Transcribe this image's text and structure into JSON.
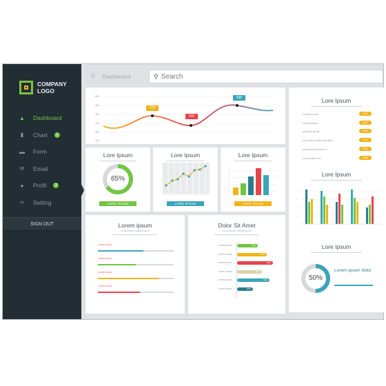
{
  "sidebar": {
    "logo_line1": "COMPANY",
    "logo_line2": "LOGO",
    "items": [
      {
        "label": "Dashboard",
        "icon": "home-icon",
        "glyph": "▲"
      },
      {
        "label": "Chart",
        "icon": "bar-chart-icon",
        "glyph": "▮",
        "badge": "2"
      },
      {
        "label": "Form",
        "icon": "form-icon",
        "glyph": "▬"
      },
      {
        "label": "Email",
        "icon": "email-icon",
        "glyph": "✉"
      },
      {
        "label": "Profil",
        "icon": "user-icon",
        "glyph": "●",
        "badge": "3"
      },
      {
        "label": "Setting",
        "icon": "gear-icon",
        "glyph": "∞"
      }
    ],
    "signout": "SIGN OUT"
  },
  "topbar": {
    "crumb": "Dashboard",
    "search_placeholder": "Search"
  },
  "line_card": {
    "y_ticks": [
      "600",
      "500",
      "400",
      "300",
      "200",
      "100"
    ],
    "tags": [
      "275",
      "200",
      "400"
    ]
  },
  "donut_card": {
    "title": "Lore Ipsum",
    "value": "65%",
    "percent": 65,
    "button": "LORE IPSUM"
  },
  "linechart_card": {
    "title": "Lore Ipsum",
    "button": "LORE IPSUM"
  },
  "barchart_card": {
    "title": "Lore Ipsum",
    "button": "LORE IPSUM"
  },
  "progress_card": {
    "title": "Lorem ipsum",
    "subtitle": "consectetuer adipiscing elit",
    "rows": [
      {
        "label": "Lorem ipsum",
        "fill": 0.6,
        "color": "#3aa5b8"
      },
      {
        "label": "Lorem ipsum",
        "fill": 0.5,
        "color": "#6fc644"
      },
      {
        "label": "Lorem ipsum",
        "fill": 0.8,
        "color": "#f2b318"
      },
      {
        "label": "Lorem ipsum",
        "fill": 0.55,
        "color": "#e8434a"
      }
    ]
  },
  "hbar_card": {
    "title": "Dolor Sit Amet",
    "subtitle": "consectetuer adipiscing elit",
    "rows": [
      {
        "label": "Lorem ipsum",
        "value": "60%",
        "fill": 0.5,
        "color": "#6fc644"
      },
      {
        "label": "Lorem ipsum",
        "value": "70%",
        "fill": 0.72,
        "color": "#f2b318"
      },
      {
        "label": "Lorem ipsum",
        "value": "80%",
        "fill": 0.87,
        "color": "#e8434a"
      },
      {
        "label": "Lorem ipsum",
        "value": "50%",
        "fill": 0.6,
        "color": "#d8d3a6"
      },
      {
        "label": "Lorem ipsum",
        "value": "60%",
        "fill": 0.78,
        "color": "#3aa5b8"
      },
      {
        "label": "Lorem ipsum",
        "value": "30%",
        "fill": 0.38,
        "color": "#2a7d8c"
      }
    ]
  },
  "list_card": {
    "title": "Lore Ipsum",
    "rows": [
      {
        "label": "Lorem ipsum",
        "value": "20%"
      },
      {
        "label": "consectetuer",
        "value": "60%"
      },
      {
        "label": "adipiscing elit",
        "value": "40%"
      },
      {
        "label": "sed diam nonummy nibh",
        "value": "70%"
      },
      {
        "label": "euismod tincidunt ut",
        "value": "30%"
      },
      {
        "label": "Duis autem vel",
        "value": "45%"
      }
    ]
  },
  "groupbar_card": {
    "title": "Lore Ipsum"
  },
  "donut2_card": {
    "title": "Lore Ipsum",
    "value": "50%",
    "percent": 50,
    "label": "Lorem ipsum dolor"
  }
}
